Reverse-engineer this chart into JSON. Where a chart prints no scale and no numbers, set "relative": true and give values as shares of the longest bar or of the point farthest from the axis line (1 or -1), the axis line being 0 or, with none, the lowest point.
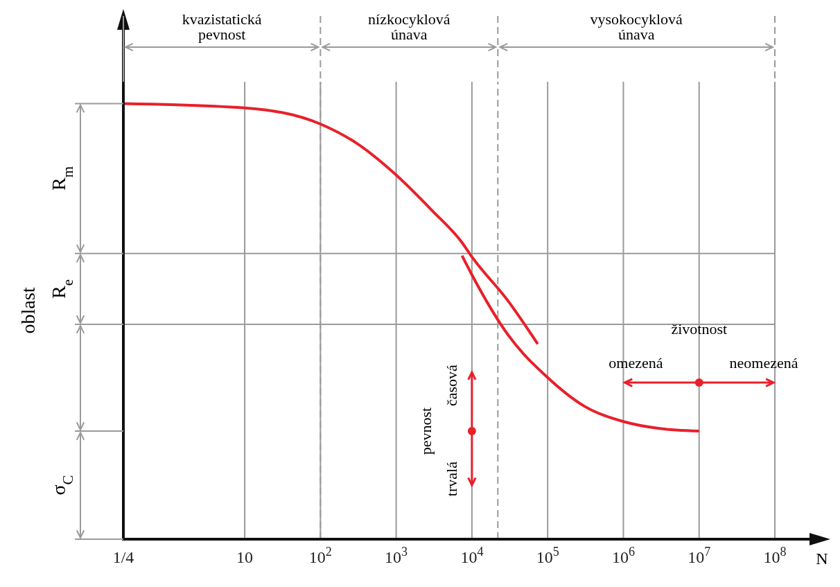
{
  "chart_data": {
    "type": "line",
    "relative": true,
    "xlabel": "N",
    "ylabel": "oblast",
    "log": "x",
    "xlim": [
      0.25,
      100000000
    ],
    "xticks": [
      {
        "value": 0.25,
        "label": "1/4"
      },
      10,
      {
        "value": 100,
        "label": "10$^{2}$"
      },
      {
        "value": 1000,
        "label": "10$^{3}$"
      },
      {
        "value": 10000,
        "label": "10$^{4}$"
      },
      {
        "value": 100000,
        "label": "10$^{5}$"
      },
      {
        "value": 1000000,
        "label": "10$^{6}$"
      },
      {
        "value": 10000000,
        "label": "10$^{7}$"
      },
      {
        "value": 100000000,
        "label": "10$^{8}$"
      }
    ],
    "grid": "x",
    "legend": false,
    "marker": "none",
    "line_style": "solid",
    "series": [
      {
        "color": "#e8202a",
        "x": [
          0.25,
          10,
          100,
          300,
          1000,
          3000,
          7400,
          10000,
          30000,
          74000
        ],
        "values": [
          1.0,
          0.99,
          0.953,
          0.909,
          0.836,
          0.754,
          0.681,
          0.648,
          0.547,
          0.448
        ]
      },
      {
        "color": "#e8202a",
        "x": [
          7400,
          10000,
          30000,
          100000,
          300000,
          1000000,
          3000000,
          10000000
        ],
        "values": [
          0.651,
          0.607,
          0.469,
          0.371,
          0.306,
          0.27,
          0.254,
          0.248
        ]
      }
    ],
    "ref_lines": [
      {
        "axis": "x",
        "value": 100,
        "line_style": "dashed",
        "color": "#9a9a9a"
      },
      {
        "axis": "x",
        "value": 22000,
        "line_style": "dashed",
        "color": "#9a9a9a"
      },
      {
        "axis": "y",
        "value": 0.656,
        "color": "#9a9a9a"
      },
      {
        "axis": "y",
        "value": 0.493,
        "color": "#9a9a9a"
      }
    ],
    "annotations": [
      "kvazistatická\npevnost",
      "nízkocyklová\núnava",
      "vysokocyklová\núnava",
      "R$_{m}$",
      "R$_{e}$",
      "σ$_{C}$",
      "životnost",
      "omezená",
      "neomezená",
      "časová",
      "pevnost",
      "trvalá"
    ]
  }
}
